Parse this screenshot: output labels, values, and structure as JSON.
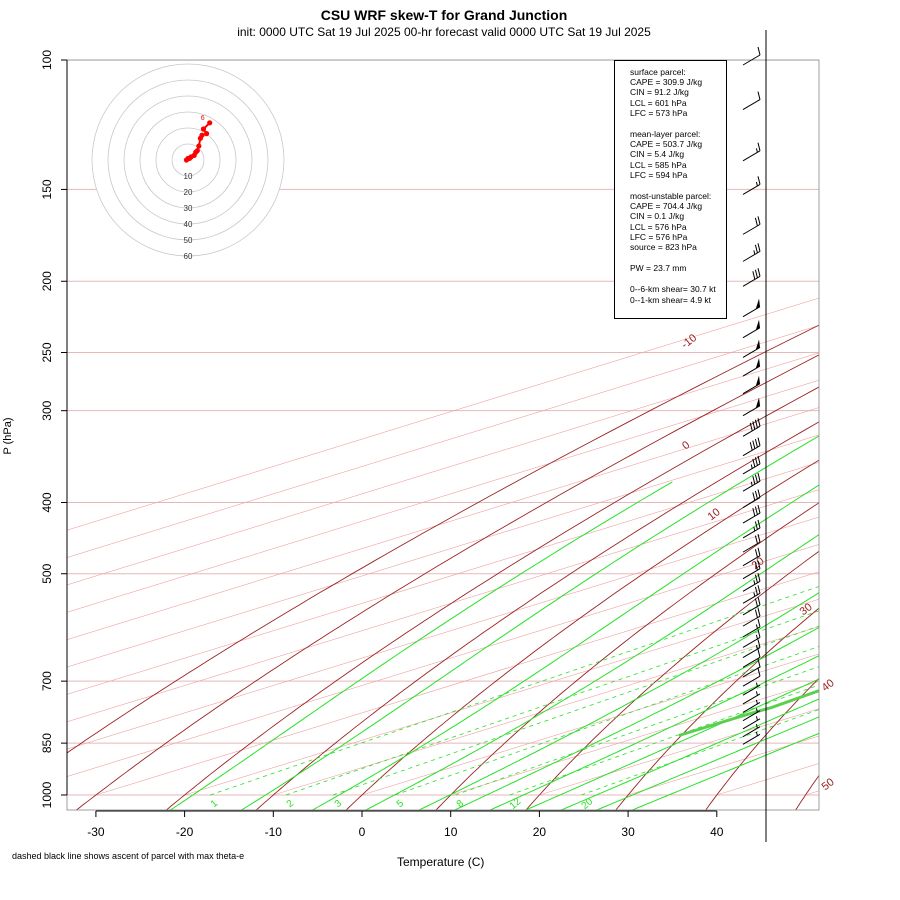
{
  "title": "CSU WRF skew-T for Grand Junction",
  "subtitle": "init: 0000 UTC Sat 19 Jul 2025    00-hr forecast valid 0000 UTC Sat 19 Jul 2025",
  "footnote": "dashed black line shows ascent of parcel with max theta-e",
  "colors": {
    "temperature": "#d9435a",
    "dewpoint": "#5ccf4f",
    "isotherm": "#f0a0a0",
    "dry_adiabat": "#9b2323",
    "moist_adiabat": "#28e028",
    "mixing_ratio": "#28e028",
    "parcel": "#000000",
    "hodograph": "#ff0000"
  },
  "info_box": {
    "surface": [
      "surface parcel:",
      "CAPE = 309.9 J/kg",
      "CIN = 91.2 J/kg",
      "LCL = 601 hPa",
      "LFC = 573 hPa"
    ],
    "mean_layer": [
      "mean-layer parcel:",
      "CAPE = 503.7 J/kg",
      "CIN = 5.4 J/kg",
      "LCL = 585 hPa",
      "LFC = 594 hPa"
    ],
    "most_unstable": [
      "most-unstable parcel:",
      "CAPE = 704.4 J/kg",
      "CIN = 0.1 J/kg",
      "LCL = 576 hPa",
      "LFC = 576 hPa",
      "source = 823 hPa"
    ],
    "pw": [
      "PW =  23.7 mm"
    ],
    "shear": [
      "0--6-km shear= 30.7 kt",
      "0--1-km shear= 4.9 kt"
    ]
  },
  "chart_data": {
    "type": "line",
    "xlabel": "Temperature (C)",
    "ylabel": "P (hPa)",
    "x_ticks": [
      -30,
      -20,
      -10,
      0,
      10,
      20,
      30,
      40
    ],
    "pressure_ticks": [
      100,
      150,
      200,
      250,
      300,
      400,
      500,
      700,
      850,
      1000
    ],
    "xlim": [
      -33,
      44
    ],
    "ylim_hpa": [
      100,
      1000
    ],
    "log_pressure_axis": true,
    "skewed_isotherms": true,
    "dry_adiabat_labels": [
      -10,
      0,
      10,
      20,
      30,
      40,
      50
    ],
    "mixing_ratio_labels": [
      "1",
      "2",
      "3",
      "5",
      "8",
      "12",
      "20"
    ],
    "hodograph_ring_labels": [
      "10",
      "20",
      "30",
      "40",
      "50",
      "60"
    ],
    "hodograph_point_labels": [
      "6"
    ],
    "series": [
      {
        "name": "temperature",
        "points": [
          [
            830,
            37.5
          ],
          [
            820,
            38
          ],
          [
            800,
            34
          ],
          [
            760,
            30.5
          ],
          [
            700,
            27
          ],
          [
            650,
            24
          ],
          [
            600,
            21
          ],
          [
            560,
            18
          ],
          [
            520,
            16
          ],
          [
            500,
            15
          ],
          [
            460,
            13
          ],
          [
            400,
            8
          ],
          [
            350,
            3
          ],
          [
            300,
            -4
          ],
          [
            280,
            -7.5
          ],
          [
            250,
            -14
          ],
          [
            220,
            -21
          ],
          [
            200,
            -28
          ],
          [
            180,
            -35
          ],
          [
            160,
            -41
          ],
          [
            150,
            -45
          ],
          [
            130,
            -50
          ],
          [
            115,
            -52
          ],
          [
            107,
            -53
          ]
        ]
      },
      {
        "name": "dewpoint",
        "points": [
          [
            830,
            14
          ],
          [
            780,
            14
          ],
          [
            760,
            14.2
          ],
          [
            700,
            13
          ],
          [
            650,
            11.5
          ],
          [
            600,
            8
          ],
          [
            560,
            2
          ],
          [
            540,
            -2
          ],
          [
            500,
            -14
          ],
          [
            490,
            -18
          ],
          [
            460,
            -17
          ],
          [
            420,
            -6
          ],
          [
            400,
            -2
          ],
          [
            380,
            -6.5
          ],
          [
            350,
            -12
          ],
          [
            300,
            -18
          ],
          [
            280,
            -24
          ],
          [
            260,
            -34
          ],
          [
            240,
            -43
          ],
          [
            225,
            -48
          ],
          [
            200,
            -42
          ],
          [
            190,
            -40
          ],
          [
            160,
            -47
          ],
          [
            130,
            -55
          ],
          [
            110,
            -60
          ],
          [
            105,
            -61
          ]
        ]
      },
      {
        "name": "parcel",
        "points": [
          [
            823,
            38
          ],
          [
            800,
            35.5
          ],
          [
            700,
            28
          ],
          [
            650,
            24.5
          ],
          [
            600,
            21.5
          ],
          [
            576,
            20
          ],
          [
            560,
            19.5
          ],
          [
            500,
            16.5
          ],
          [
            460,
            13
          ],
          [
            400,
            7
          ],
          [
            350,
            1
          ],
          [
            300,
            -8
          ],
          [
            250,
            -17
          ],
          [
            200,
            -29
          ],
          [
            170,
            -38
          ],
          [
            150,
            -45
          ]
        ]
      }
    ],
    "hodograph_points": [
      [
        -1,
        0
      ],
      [
        0,
        1
      ],
      [
        1,
        1
      ],
      [
        2,
        2
      ],
      [
        4,
        3
      ],
      [
        5,
        5
      ],
      [
        6,
        6
      ],
      [
        7,
        9
      ],
      [
        8,
        14
      ],
      [
        9,
        16
      ],
      [
        12,
        17
      ],
      [
        10,
        20
      ],
      [
        14,
        24
      ]
    ],
    "wind_barbs_kt": [
      [
        100,
        10
      ],
      [
        115,
        10
      ],
      [
        135,
        15
      ],
      [
        150,
        15
      ],
      [
        170,
        20
      ],
      [
        185,
        25
      ],
      [
        200,
        30
      ],
      [
        220,
        50
      ],
      [
        235,
        50
      ],
      [
        250,
        50
      ],
      [
        265,
        50
      ],
      [
        280,
        50
      ],
      [
        300,
        50
      ],
      [
        320,
        40
      ],
      [
        340,
        40
      ],
      [
        360,
        35
      ],
      [
        380,
        35
      ],
      [
        400,
        30
      ],
      [
        420,
        30
      ],
      [
        440,
        25
      ],
      [
        460,
        20
      ],
      [
        480,
        20
      ],
      [
        500,
        20
      ],
      [
        520,
        25
      ],
      [
        540,
        25
      ],
      [
        560,
        20
      ],
      [
        580,
        20
      ],
      [
        600,
        15
      ],
      [
        620,
        15
      ],
      [
        640,
        15
      ],
      [
        660,
        10
      ],
      [
        680,
        10
      ],
      [
        700,
        10
      ],
      [
        720,
        5
      ],
      [
        740,
        5
      ],
      [
        760,
        5
      ],
      [
        780,
        5
      ],
      [
        800,
        5
      ],
      [
        820,
        5
      ],
      [
        840,
        5
      ]
    ]
  }
}
